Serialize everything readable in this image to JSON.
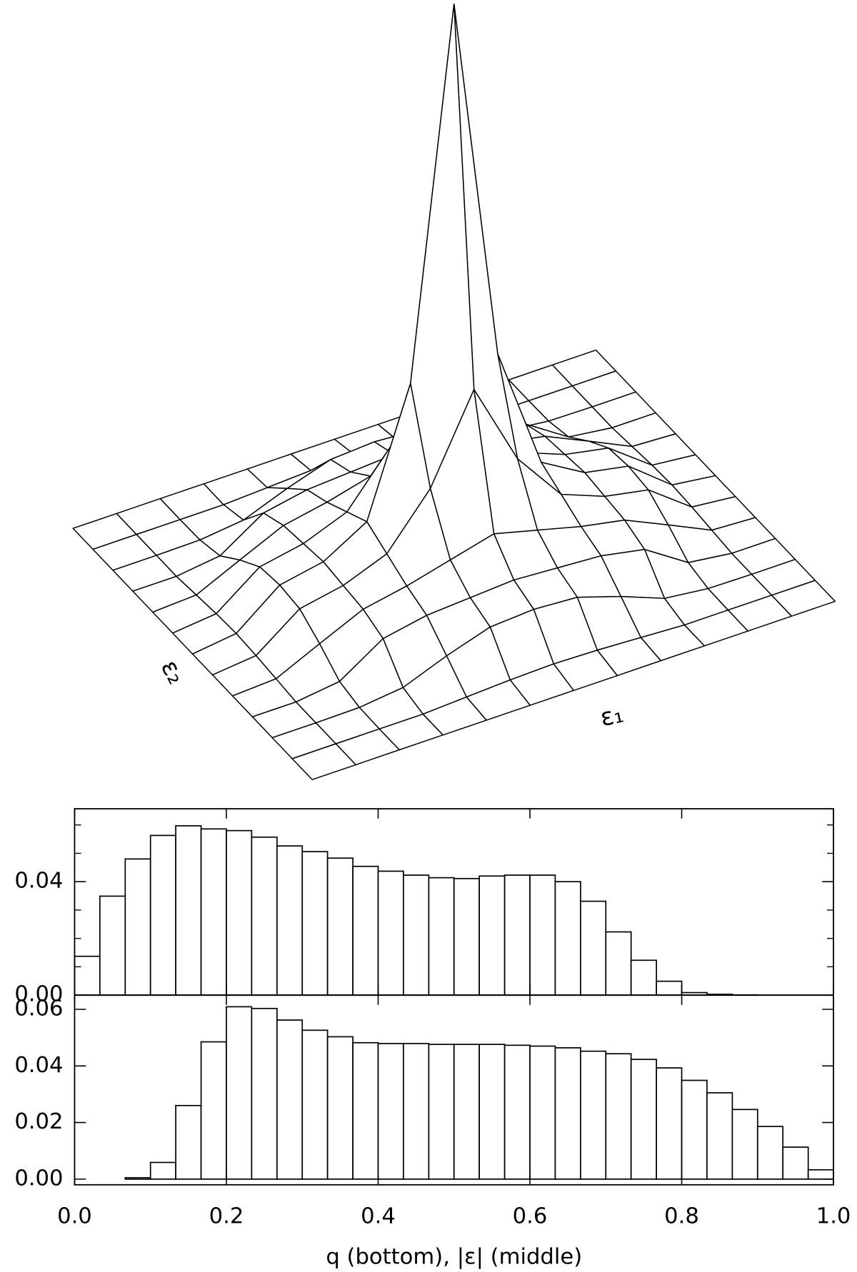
{
  "chart_data": [
    {
      "type": "surface",
      "xlabel": "ε₁",
      "ylabel": "ε₂",
      "zlim": [
        0,
        1
      ],
      "z": [
        [
          0,
          0,
          0,
          0,
          0,
          0,
          0,
          0,
          0,
          0,
          0,
          0,
          0
        ],
        [
          0,
          0,
          0,
          0,
          0.004,
          0.008,
          0.01,
          0.008,
          0.004,
          0,
          0,
          0,
          0
        ],
        [
          0,
          0,
          0.001,
          0.01,
          0.04,
          0.065,
          0.07,
          0.065,
          0.04,
          0.01,
          0.001,
          0,
          0
        ],
        [
          0,
          0,
          0.01,
          0.06,
          0.075,
          0.08,
          0.085,
          0.08,
          0.075,
          0.06,
          0.01,
          0,
          0
        ],
        [
          0,
          0.004,
          0.04,
          0.075,
          0.09,
          0.11,
          0.13,
          0.11,
          0.09,
          0.075,
          0.04,
          0.004,
          0
        ],
        [
          0,
          0.008,
          0.065,
          0.08,
          0.11,
          0.2,
          0.35,
          0.2,
          0.11,
          0.08,
          0.065,
          0.008,
          0
        ],
        [
          0,
          0.01,
          0.07,
          0.085,
          0.13,
          0.35,
          1.0,
          0.35,
          0.13,
          0.085,
          0.07,
          0.01,
          0
        ],
        [
          0,
          0.008,
          0.065,
          0.08,
          0.11,
          0.2,
          0.35,
          0.2,
          0.11,
          0.08,
          0.065,
          0.008,
          0
        ],
        [
          0,
          0.004,
          0.04,
          0.075,
          0.09,
          0.11,
          0.13,
          0.11,
          0.09,
          0.075,
          0.04,
          0.004,
          0
        ],
        [
          0,
          0,
          0.01,
          0.06,
          0.075,
          0.08,
          0.085,
          0.08,
          0.075,
          0.06,
          0.01,
          0,
          0
        ],
        [
          0,
          0,
          0.001,
          0.01,
          0.04,
          0.065,
          0.07,
          0.065,
          0.04,
          0.01,
          0.001,
          0,
          0
        ],
        [
          0,
          0,
          0,
          0,
          0.004,
          0.008,
          0.01,
          0.008,
          0.004,
          0,
          0,
          0,
          0
        ],
        [
          0,
          0,
          0,
          0,
          0,
          0,
          0,
          0,
          0,
          0,
          0,
          0,
          0
        ]
      ]
    },
    {
      "type": "histogram",
      "bins": [
        0,
        0.0333,
        0.0667,
        0.1,
        0.1333,
        0.1667,
        0.2,
        0.2333,
        0.2667,
        0.3,
        0.3333,
        0.3667,
        0.4,
        0.4333,
        0.4667,
        0.5,
        0.5333,
        0.5667,
        0.6,
        0.6333,
        0.6667,
        0.7,
        0.7333,
        0.7667,
        0.8,
        0.8333,
        0.8667,
        0.9,
        0.9333,
        0.9667,
        1
      ],
      "values": [
        0.0137,
        0.0349,
        0.048,
        0.0563,
        0.0597,
        0.0586,
        0.058,
        0.0557,
        0.0526,
        0.0506,
        0.0483,
        0.0454,
        0.0437,
        0.0423,
        0.0414,
        0.0411,
        0.042,
        0.0423,
        0.0423,
        0.04,
        0.0331,
        0.0223,
        0.0123,
        0.0049,
        0.0009,
        0.0003,
        0.0001,
        0,
        0,
        0
      ],
      "xlim": [
        0,
        1
      ],
      "xticks": [
        0,
        0.2,
        0.4,
        0.6,
        0.8,
        1
      ],
      "show_xtick_labels": false,
      "ylim": [
        0,
        0.0657
      ],
      "yticks": [
        {
          "value": 0,
          "label": "0.00"
        },
        0.04
      ],
      "yminorticks": [
        0.01,
        0.02,
        0.03,
        0.05,
        0.06
      ]
    },
    {
      "type": "histogram",
      "bins": [
        0,
        0.0333,
        0.0667,
        0.1,
        0.1333,
        0.1667,
        0.2,
        0.2333,
        0.2667,
        0.3,
        0.3333,
        0.3667,
        0.4,
        0.4333,
        0.4667,
        0.5,
        0.5333,
        0.5667,
        0.6,
        0.6333,
        0.6667,
        0.7,
        0.7333,
        0.7667,
        0.8,
        0.8333,
        0.8667,
        0.9,
        0.9333,
        0.9667,
        1
      ],
      "values": [
        0,
        0,
        0.0005,
        0.0059,
        0.026,
        0.0485,
        0.0609,
        0.0603,
        0.0562,
        0.0526,
        0.0503,
        0.0482,
        0.0479,
        0.0479,
        0.0476,
        0.0476,
        0.0476,
        0.0473,
        0.047,
        0.0464,
        0.0452,
        0.0443,
        0.0423,
        0.0393,
        0.0349,
        0.0305,
        0.0246,
        0.0186,
        0.0113,
        0.0033
      ],
      "xlim": [
        0,
        1
      ],
      "xticks": [
        {
          "value": 0,
          "label": "0.0"
        },
        0.2,
        0.4,
        0.6,
        0.8,
        {
          "value": 1,
          "label": "1.0"
        }
      ],
      "show_xtick_labels": true,
      "xlabel": "q (bottom), |ε| (middle)",
      "ylim": [
        -0.002,
        0.065
      ],
      "yticks": [
        {
          "value": 0,
          "label": "0.00"
        },
        0.02,
        0.04,
        0.06
      ],
      "yminorticks": []
    }
  ]
}
